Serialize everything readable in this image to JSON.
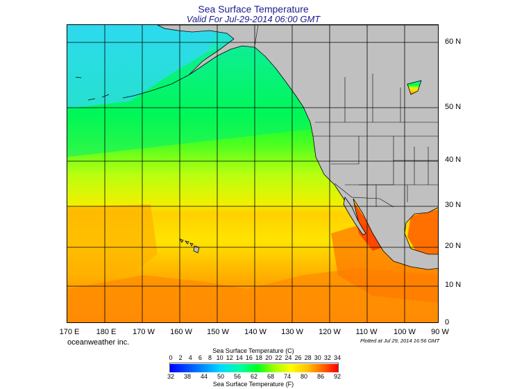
{
  "header": {
    "title": "Sea Surface Temperature",
    "subtitle": "Valid For Jul-29-2014 06:00 GMT"
  },
  "map": {
    "lat_labels": [
      "60 N",
      "50 N",
      "40 N",
      "30 N",
      "20 N",
      "10 N",
      "0"
    ],
    "lon_labels": [
      "170 E",
      "180 E",
      "170 W",
      "160 W",
      "150 W",
      "140 W",
      "130 W",
      "120 W",
      "110 W",
      "100 W",
      "90 W"
    ],
    "colors": {
      "land": "#c0c0c0",
      "grid": "#000000",
      "cold": "#00e0ff",
      "cool": "#00ff5a",
      "mild": "#c8ff00",
      "warm": "#ffe000",
      "hot": "#ff8c00",
      "very_hot": "#ff3800"
    }
  },
  "footer": {
    "credit": "oceanweather inc.",
    "plotted": "Plotted at Jul 29, 2014 16:56 GMT"
  },
  "colorbar": {
    "title_c": "Sea Surface Temperature (C)",
    "title_f": "Sea Surface Temperature (F)",
    "ticks_c": [
      "0",
      "2",
      "4",
      "6",
      "8",
      "10",
      "12",
      "14",
      "16",
      "18",
      "20",
      "22",
      "24",
      "26",
      "28",
      "30",
      "32",
      "34"
    ],
    "ticks_f": [
      "32",
      "38",
      "44",
      "50",
      "56",
      "62",
      "68",
      "74",
      "80",
      "86",
      "92"
    ]
  }
}
